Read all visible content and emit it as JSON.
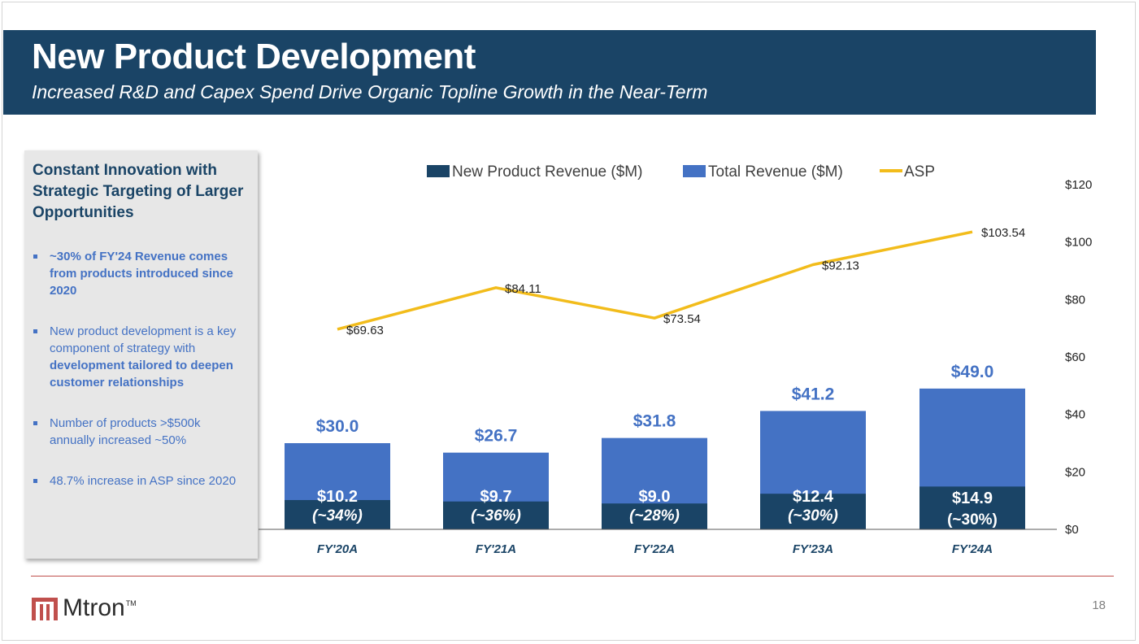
{
  "header": {
    "title": "New Product Development",
    "subtitle": "Increased R&D and Capex Spend Drive Organic Topline Growth in the Near-Term"
  },
  "sidebar": {
    "heading": "Constant Innovation with Strategic Targeting of Larger Opportunities",
    "bullets": [
      {
        "pre": "~30% of FY'24 Revenue comes from products introduced since 2020",
        "bold": "",
        "post": ""
      },
      {
        "pre": "New product development is a key component of strategy with ",
        "bold": "development tailored to deepen customer relationships",
        "post": ""
      },
      {
        "pre": "Number of products >$500k annually increased ~50%",
        "bold": "",
        "post": ""
      },
      {
        "pre": "48.7% increase in ASP since 2020",
        "bold": "",
        "post": ""
      }
    ]
  },
  "chart_data": {
    "type": "bar",
    "categories": [
      "FY'20A",
      "FY'21A",
      "FY'22A",
      "FY'23A",
      "FY'24A"
    ],
    "series": [
      {
        "name": "New Product Revenue ($M)",
        "kind": "bar",
        "values": [
          10.2,
          9.7,
          9.0,
          12.4,
          14.9
        ],
        "labels": [
          "$10.2",
          "$9.7",
          "$9.0",
          "$12.4",
          "$14.9"
        ],
        "sublabels": [
          "(~34%)",
          "(~36%)",
          "(~28%)",
          "(~30%)",
          "(~30%)"
        ],
        "color": "#1a4466"
      },
      {
        "name": "Total Revenue ($M)",
        "kind": "bar",
        "values": [
          30.0,
          26.7,
          31.8,
          41.2,
          49.0
        ],
        "labels": [
          "$30.0",
          "$26.7",
          "$31.8",
          "$41.2",
          "$49.0"
        ],
        "color": "#4472c4"
      },
      {
        "name": "ASP",
        "kind": "line",
        "values": [
          69.63,
          84.11,
          73.54,
          92.13,
          103.54
        ],
        "labels": [
          "$69.63",
          "$84.11",
          "$73.54",
          "$92.13",
          "$103.54"
        ],
        "color": "#f2bc1b"
      }
    ],
    "y_axis": {
      "side": "right",
      "ylim": [
        0,
        120
      ],
      "ticks": [
        0,
        20,
        40,
        60,
        80,
        100,
        120
      ],
      "tick_labels": [
        "$0",
        "$20",
        "$40",
        "$60",
        "$80",
        "$100",
        "$120"
      ]
    },
    "legend": {
      "position": "top"
    },
    "grid": false
  },
  "footer": {
    "logo_text": "Mtron",
    "logo_tm": "TM",
    "page_number": "18"
  },
  "colors": {
    "navy": "#1a4466",
    "blue": "#4472c4",
    "gold": "#f2bc1b",
    "accent_red": "#c0504d"
  }
}
